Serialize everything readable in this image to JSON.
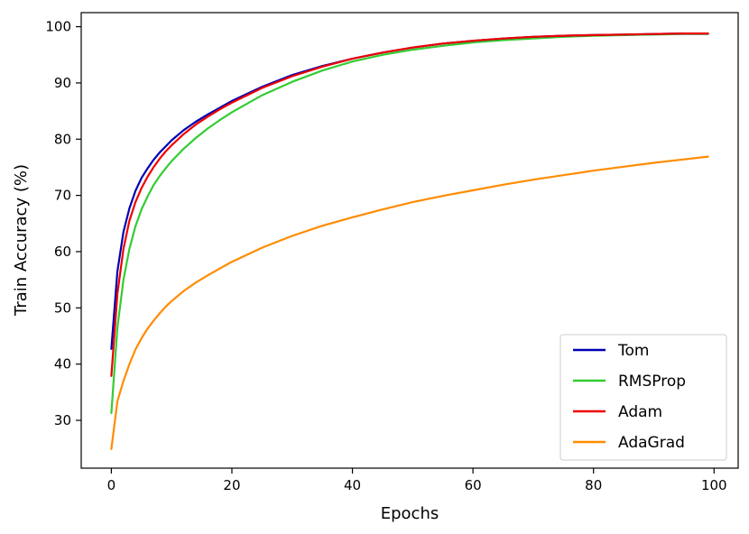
{
  "chart_data": {
    "type": "line",
    "title": "",
    "xlabel": "Epochs",
    "ylabel": "Train Accuracy (%)",
    "xlim": [
      -5,
      104
    ],
    "ylim": [
      21.5,
      102.5
    ],
    "xticks": [
      0,
      20,
      40,
      60,
      80,
      100
    ],
    "yticks": [
      30,
      40,
      50,
      60,
      70,
      80,
      90,
      100
    ],
    "grid": false,
    "legend_position": "lower-right",
    "series": [
      {
        "name": "Tom",
        "color": "#0000b3",
        "points": [
          [
            0,
            42.7
          ],
          [
            1,
            56.5
          ],
          [
            2,
            63.5
          ],
          [
            3,
            67.7
          ],
          [
            4,
            70.8
          ],
          [
            5,
            73.1
          ],
          [
            6,
            74.8
          ],
          [
            7,
            76.3
          ],
          [
            8,
            77.6
          ],
          [
            9,
            78.7
          ],
          [
            10,
            79.8
          ],
          [
            12,
            81.6
          ],
          [
            14,
            83.1
          ],
          [
            16,
            84.4
          ],
          [
            18,
            85.6
          ],
          [
            20,
            86.8
          ],
          [
            25,
            89.3
          ],
          [
            30,
            91.4
          ],
          [
            35,
            93.0
          ],
          [
            40,
            94.3
          ],
          [
            45,
            95.4
          ],
          [
            50,
            96.3
          ],
          [
            55,
            97.0
          ],
          [
            60,
            97.5
          ],
          [
            65,
            97.9
          ],
          [
            70,
            98.2
          ],
          [
            75,
            98.4
          ],
          [
            80,
            98.5
          ],
          [
            85,
            98.6
          ],
          [
            90,
            98.7
          ],
          [
            95,
            98.8
          ],
          [
            99,
            98.8
          ]
        ]
      },
      {
        "name": "RMSProp",
        "color": "#33cc33",
        "points": [
          [
            0,
            31.3
          ],
          [
            1,
            46.5
          ],
          [
            2,
            55.0
          ],
          [
            3,
            60.5
          ],
          [
            4,
            64.5
          ],
          [
            5,
            67.5
          ],
          [
            6,
            69.8
          ],
          [
            7,
            71.8
          ],
          [
            8,
            73.4
          ],
          [
            9,
            74.8
          ],
          [
            10,
            76.1
          ],
          [
            12,
            78.3
          ],
          [
            14,
            80.2
          ],
          [
            16,
            81.9
          ],
          [
            18,
            83.4
          ],
          [
            20,
            84.8
          ],
          [
            25,
            87.8
          ],
          [
            30,
            90.2
          ],
          [
            35,
            92.2
          ],
          [
            40,
            93.8
          ],
          [
            45,
            95.0
          ],
          [
            50,
            95.9
          ],
          [
            55,
            96.6
          ],
          [
            60,
            97.2
          ],
          [
            65,
            97.6
          ],
          [
            70,
            97.9
          ],
          [
            75,
            98.2
          ],
          [
            80,
            98.4
          ],
          [
            85,
            98.5
          ],
          [
            90,
            98.6
          ],
          [
            95,
            98.7
          ],
          [
            99,
            98.7
          ]
        ]
      },
      {
        "name": "Adam",
        "color": "#ee0000",
        "points": [
          [
            0,
            37.9
          ],
          [
            1,
            52.5
          ],
          [
            2,
            60.5
          ],
          [
            3,
            65.5
          ],
          [
            4,
            68.8
          ],
          [
            5,
            71.3
          ],
          [
            6,
            73.3
          ],
          [
            7,
            75.0
          ],
          [
            8,
            76.5
          ],
          [
            9,
            77.8
          ],
          [
            10,
            78.9
          ],
          [
            12,
            80.9
          ],
          [
            14,
            82.6
          ],
          [
            16,
            84.0
          ],
          [
            18,
            85.3
          ],
          [
            20,
            86.5
          ],
          [
            25,
            89.1
          ],
          [
            30,
            91.2
          ],
          [
            35,
            92.9
          ],
          [
            40,
            94.3
          ],
          [
            45,
            95.4
          ],
          [
            50,
            96.3
          ],
          [
            55,
            97.0
          ],
          [
            60,
            97.5
          ],
          [
            65,
            97.9
          ],
          [
            70,
            98.2
          ],
          [
            75,
            98.4
          ],
          [
            80,
            98.5
          ],
          [
            85,
            98.6
          ],
          [
            90,
            98.7
          ],
          [
            95,
            98.8
          ],
          [
            99,
            98.8
          ]
        ]
      },
      {
        "name": "AdaGrad",
        "color": "#ff8c00",
        "points": [
          [
            0,
            24.9
          ],
          [
            1,
            33.4
          ],
          [
            2,
            37.0
          ],
          [
            3,
            40.0
          ],
          [
            4,
            42.6
          ],
          [
            5,
            44.6
          ],
          [
            6,
            46.3
          ],
          [
            7,
            47.7
          ],
          [
            8,
            49.0
          ],
          [
            9,
            50.2
          ],
          [
            10,
            51.2
          ],
          [
            12,
            53.0
          ],
          [
            14,
            54.5
          ],
          [
            16,
            55.8
          ],
          [
            18,
            57.0
          ],
          [
            20,
            58.2
          ],
          [
            25,
            60.7
          ],
          [
            30,
            62.8
          ],
          [
            35,
            64.6
          ],
          [
            40,
            66.1
          ],
          [
            45,
            67.5
          ],
          [
            50,
            68.8
          ],
          [
            55,
            69.9
          ],
          [
            60,
            70.9
          ],
          [
            65,
            71.9
          ],
          [
            70,
            72.8
          ],
          [
            75,
            73.6
          ],
          [
            80,
            74.4
          ],
          [
            85,
            75.1
          ],
          [
            90,
            75.8
          ],
          [
            95,
            76.4
          ],
          [
            99,
            76.9
          ]
        ]
      }
    ]
  }
}
